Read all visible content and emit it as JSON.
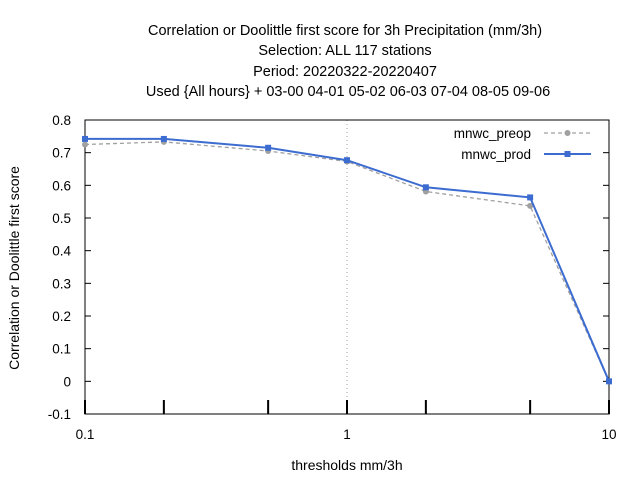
{
  "chart_data": {
    "type": "line",
    "title_lines": [
      "Correlation or Doolittle first score  for 3h Precipitation (mm/3h)",
      "Selection: ALL    117 stations",
      "Period: 20220322-20220407",
      "Used {All hours} + 03-00 04-01 05-02 06-03 07-04 08-05 09-06"
    ],
    "xlabel": "thresholds mm/3h",
    "ylabel": "Correlation or Doolittle first score",
    "x_scale": "log",
    "xlim": [
      0.1,
      10
    ],
    "ylim": [
      -0.1,
      0.8
    ],
    "x_ticks": [
      0.1,
      1,
      10
    ],
    "x_tick_labels": [
      "0.1",
      "1",
      "10"
    ],
    "x_minor_ticks": [
      0.2,
      0.5,
      2,
      5
    ],
    "y_ticks": [
      -0.1,
      0,
      0.1,
      0.2,
      0.3,
      0.4,
      0.5,
      0.6,
      0.7,
      0.8
    ],
    "y_tick_labels": [
      "-0.1",
      "0",
      "0.1",
      "0.2",
      "0.3",
      "0.4",
      "0.5",
      "0.6",
      "0.7",
      "0.8"
    ],
    "grid": "x-major dotted",
    "legend_position": "top-right",
    "x": [
      0.1,
      0.2,
      0.5,
      1,
      2,
      5,
      10
    ],
    "series": [
      {
        "name": "mnwc_preop",
        "color": "#a0a0a0",
        "style": "dashed",
        "marker": "circle",
        "values": [
          0.725,
          0.733,
          0.705,
          0.673,
          0.581,
          0.537,
          0.0
        ]
      },
      {
        "name": "mnwc_prod",
        "color": "#3c6cd0",
        "style": "solid",
        "marker": "square",
        "values": [
          0.742,
          0.742,
          0.715,
          0.677,
          0.594,
          0.563,
          0.0
        ]
      }
    ]
  }
}
